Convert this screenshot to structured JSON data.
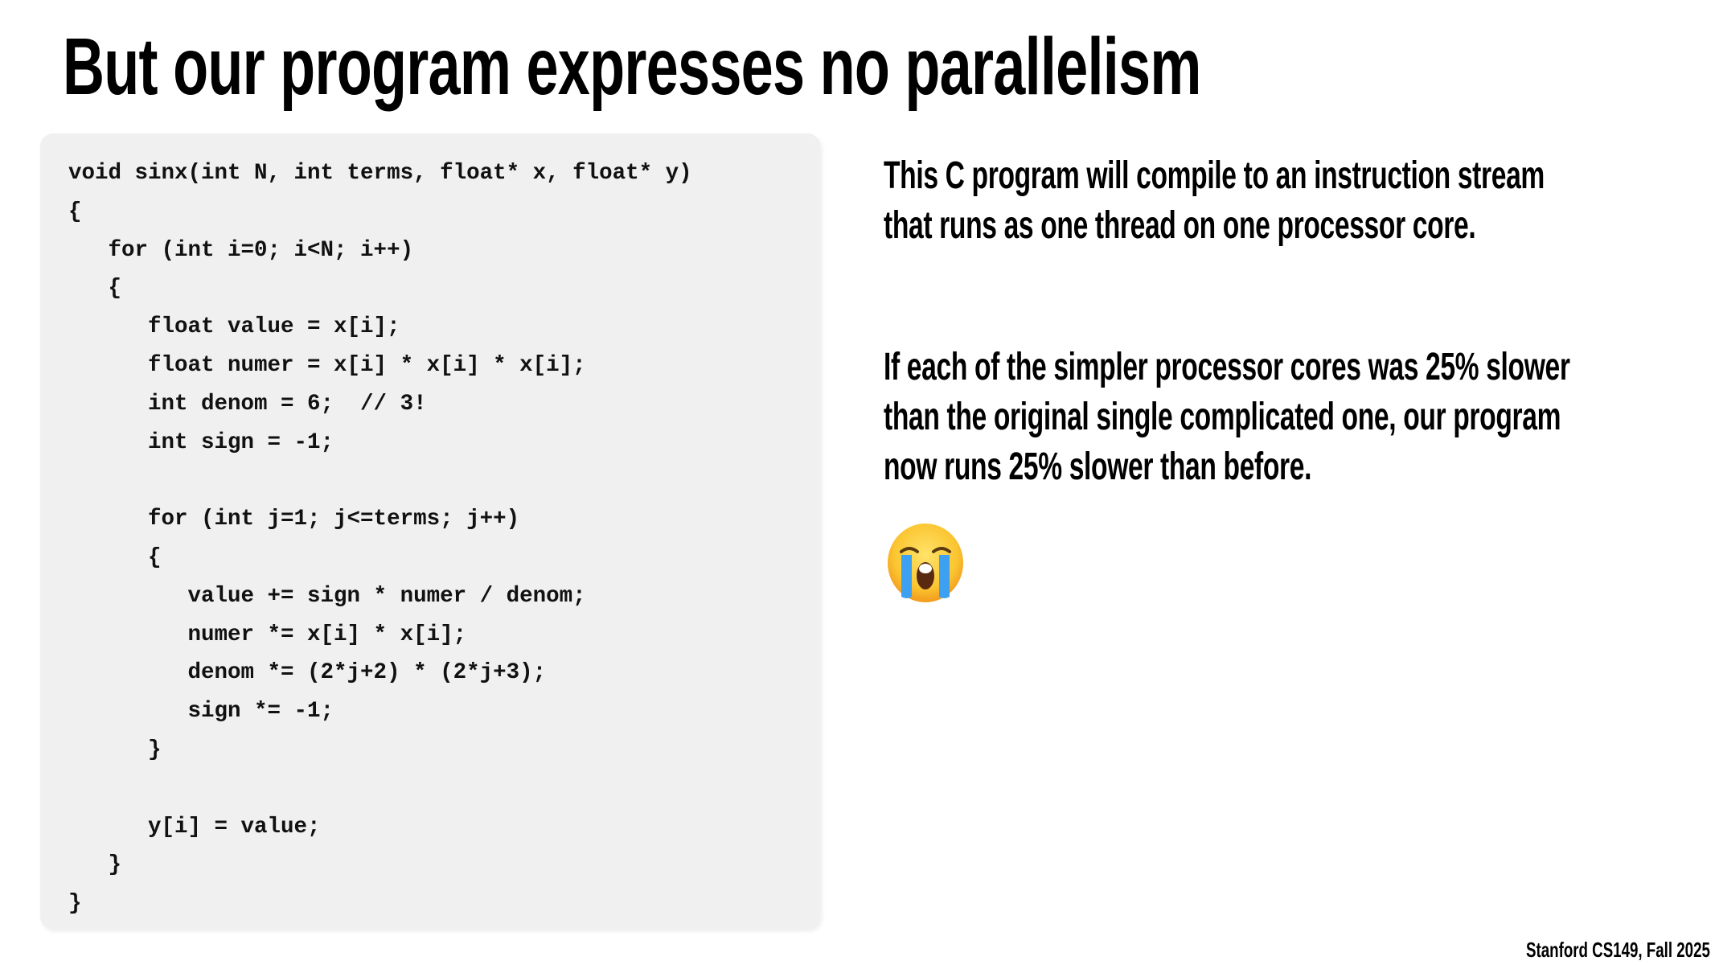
{
  "title": "But our program expresses no parallelism",
  "code": {
    "language": "C",
    "lines": [
      "void sinx(int N, int terms, float* x, float* y)",
      "{",
      "   for (int i=0; i<N; i++)",
      "   {",
      "      float value = x[i];",
      "      float numer = x[i] * x[i] * x[i];",
      "      int denom = 6;  // 3!",
      "      int sign = -1;",
      "",
      "      for (int j=1; j<=terms; j++)",
      "      {",
      "         value += sign * numer / denom;",
      "         numer *= x[i] * x[i];",
      "         denom *= (2*j+2) * (2*j+3);",
      "         sign *= -1;",
      "      }",
      "",
      "      y[i] = value;",
      "   }",
      "}"
    ]
  },
  "paragraphs": [
    {
      "lines": [
        "This C program will compile to an instruction stream",
        "that runs as one thread on one processor core."
      ]
    },
    {
      "lines": [
        "If each of the simpler processor cores was 25% slower",
        "than the original single complicated one, our program",
        "now runs 25% slower than before."
      ]
    }
  ],
  "emoji": {
    "icon": "loudly-crying-face-icon",
    "char": "😭"
  },
  "footer": "Stanford CS149, Fall 2025",
  "colors": {
    "code_background": "#f0f0f0",
    "text": "#000000"
  }
}
